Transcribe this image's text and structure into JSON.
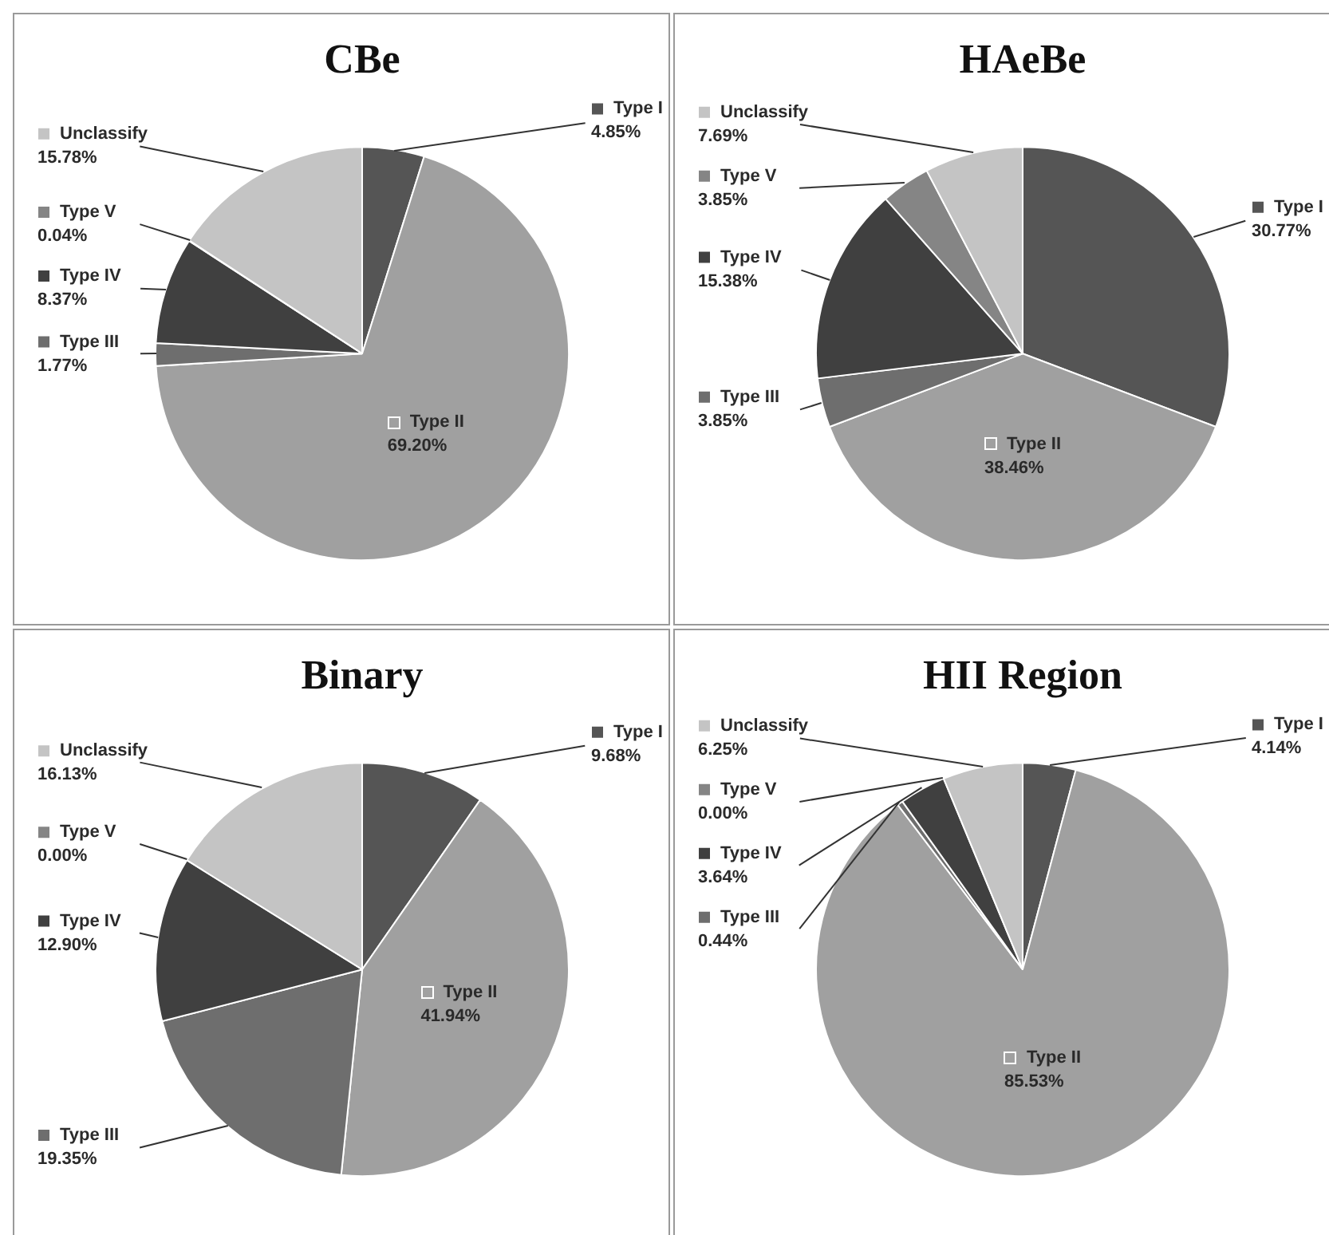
{
  "chart_data": [
    {
      "type": "pie",
      "title": "CBe",
      "legend": "left",
      "categories": [
        "Type I",
        "Type II",
        "Type III",
        "Type IV",
        "Type V",
        "Unclassify"
      ],
      "values": [
        4.85,
        69.2,
        1.77,
        8.37,
        0.04,
        15.78
      ],
      "value_labels": [
        "4.85%",
        "69.20%",
        "1.77%",
        "8.37%",
        "0.04%",
        "15.78%"
      ],
      "colors": [
        "#555555",
        "#a0a0a0",
        "#6e6e6e",
        "#404040",
        "#858585",
        "#c4c4c4"
      ]
    },
    {
      "type": "pie",
      "title": "HAeBe",
      "legend": "left",
      "categories": [
        "Type I",
        "Type II",
        "Type III",
        "Type IV",
        "Type V",
        "Unclassify"
      ],
      "values": [
        30.77,
        38.46,
        3.85,
        15.38,
        3.85,
        7.69
      ],
      "value_labels": [
        "30.77%",
        "38.46%",
        "3.85%",
        "15.38%",
        "3.85%",
        "7.69%"
      ],
      "colors": [
        "#555555",
        "#a0a0a0",
        "#6e6e6e",
        "#404040",
        "#858585",
        "#c4c4c4"
      ]
    },
    {
      "type": "pie",
      "title": "Binary",
      "legend": "left",
      "categories": [
        "Type I",
        "Type II",
        "Type III",
        "Type IV",
        "Type V",
        "Unclassify"
      ],
      "values": [
        9.68,
        41.94,
        19.35,
        12.9,
        0.0,
        16.13
      ],
      "value_labels": [
        "9.68%",
        "41.94%",
        "19.35%",
        "12.90%",
        "0.00%",
        "16.13%"
      ],
      "colors": [
        "#555555",
        "#a0a0a0",
        "#6e6e6e",
        "#404040",
        "#858585",
        "#c4c4c4"
      ]
    },
    {
      "type": "pie",
      "title": "HII Region",
      "legend": "left",
      "categories": [
        "Type I",
        "Type II",
        "Type III",
        "Type IV",
        "Type V",
        "Unclassify"
      ],
      "values": [
        4.14,
        85.53,
        0.44,
        3.64,
        0.0,
        6.25
      ],
      "value_labels": [
        "4.14%",
        "85.53%",
        "0.44%",
        "3.64%",
        "0.00%",
        "6.25%"
      ],
      "colors": [
        "#555555",
        "#a0a0a0",
        "#6e6e6e",
        "#404040",
        "#858585",
        "#c4c4c4"
      ]
    }
  ]
}
